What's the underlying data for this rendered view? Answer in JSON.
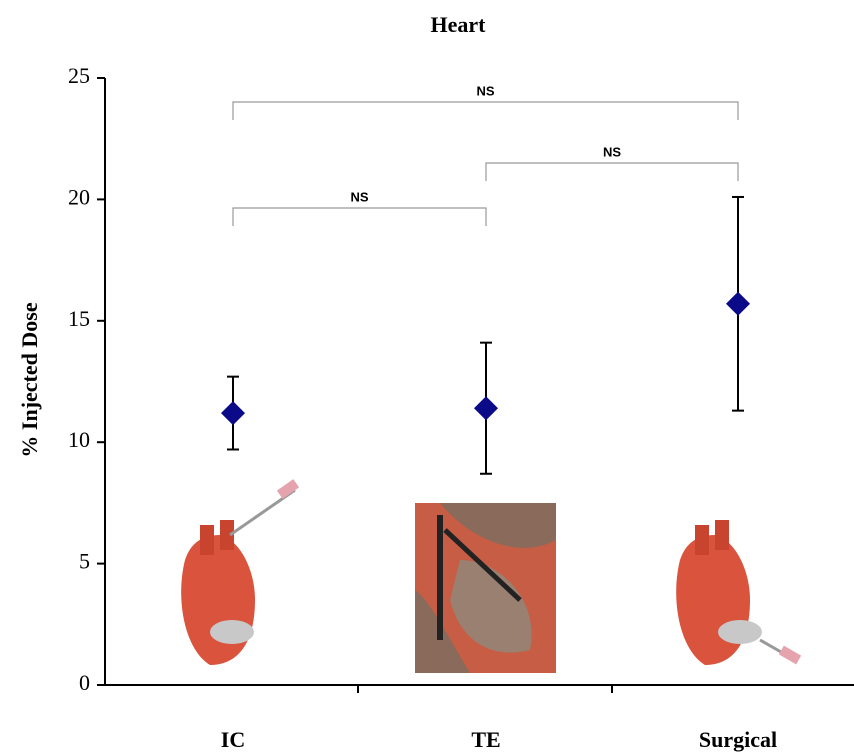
{
  "chart_data": {
    "type": "errorbar",
    "title": "Heart",
    "y_label": "% Injected Dose",
    "categories": [
      "IC",
      "TE",
      "Surgical"
    ],
    "values": [
      11.2,
      11.4,
      15.7
    ],
    "errors": [
      1.5,
      2.7,
      4.4
    ],
    "color": "#0b0b8a",
    "ylim": [
      0,
      25
    ],
    "yticks": [
      0,
      5,
      10,
      15,
      20,
      25
    ],
    "comparisons": [
      {
        "label": "NS",
        "between": [
          "IC",
          "Surgical"
        ]
      },
      {
        "label": "NS",
        "between": [
          "TE",
          "Surgical"
        ]
      },
      {
        "label": "NS",
        "between": [
          "IC",
          "TE"
        ]
      }
    ]
  }
}
